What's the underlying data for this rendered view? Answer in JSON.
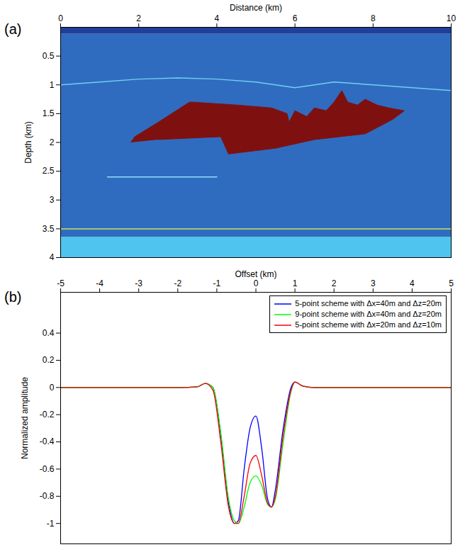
{
  "chart_data": [
    {
      "type": "image",
      "panel_label": "(a)",
      "x_label": "Distance (km)",
      "y_label": "Depth (km)",
      "xlim": [
        0,
        10
      ],
      "ylim": [
        0,
        4
      ],
      "xticks": [
        0,
        2,
        4,
        6,
        8,
        10
      ],
      "yticks": [
        0.5,
        1,
        1.5,
        2,
        2.5,
        3,
        3.5,
        4
      ],
      "grid": false,
      "layers": [
        {
          "depth_top": 0,
          "depth_bottom": 0.12,
          "color": "#1f3f99"
        },
        {
          "depth_top": 0.12,
          "depth_bottom": 3.65,
          "color": "#2f6cbf"
        },
        {
          "depth_top": 3.65,
          "depth_bottom": 4,
          "color": "#4ec4ee"
        }
      ],
      "reflectors": [
        {
          "color": "#6fd0f0",
          "x": [
            0,
            1,
            2,
            3,
            4,
            5,
            6,
            7,
            8,
            9,
            10
          ],
          "y": [
            1.0,
            0.95,
            0.9,
            0.88,
            0.9,
            0.95,
            1.05,
            0.95,
            1.0,
            1.05,
            1.1
          ]
        },
        {
          "color": "#8fe0ff",
          "x": [
            1.2,
            2.5,
            4.0
          ],
          "y": [
            2.6,
            2.6,
            2.6
          ]
        },
        {
          "color": "#c8e060",
          "x": [
            0,
            10
          ],
          "y": [
            3.5,
            3.5
          ]
        }
      ],
      "salt_body": {
        "color": "#7f1010",
        "x": [
          1.8,
          1.9,
          2.5,
          3.3,
          3.4,
          4.5,
          5.4,
          5.8,
          5.85,
          6.0,
          6.3,
          6.5,
          6.8,
          7.0,
          7.2,
          7.35,
          7.6,
          7.8,
          8.1,
          8.4,
          8.8,
          8.5,
          7.8,
          6.5,
          5.5,
          4.3,
          4.1,
          2.5
        ],
        "y": [
          2.0,
          1.9,
          1.65,
          1.3,
          1.3,
          1.35,
          1.4,
          1.5,
          1.65,
          1.45,
          1.55,
          1.4,
          1.45,
          1.3,
          1.1,
          1.3,
          1.35,
          1.25,
          1.35,
          1.4,
          1.45,
          1.6,
          1.85,
          1.95,
          2.1,
          2.2,
          1.9,
          1.95
        ]
      }
    },
    {
      "type": "line",
      "panel_label": "(b)",
      "x_label": "Offset (km)",
      "y_label": "Normalized amplitude",
      "xlim": [
        -5,
        5
      ],
      "ylim": [
        -1.15,
        0.7
      ],
      "xticks": [
        -5,
        -4,
        -3,
        -2,
        -1,
        0,
        1,
        2,
        3,
        4,
        5
      ],
      "yticks": [
        -1,
        -0.8,
        -0.6,
        -0.4,
        -0.2,
        0,
        0.2,
        0.4
      ],
      "grid": false,
      "legend": "top-right",
      "x": [
        -5,
        -2,
        -1.5,
        -1.3,
        -1.1,
        -0.9,
        -0.7,
        -0.55,
        -0.45,
        -0.3,
        -0.15,
        0,
        0.15,
        0.3,
        0.4,
        0.5,
        0.7,
        0.9,
        1.0,
        1.2,
        1.5,
        2,
        5
      ],
      "series": [
        {
          "name": "5-point scheme with Δx=40m and Δz=20m",
          "color": "#0000ff",
          "values": [
            0,
            0,
            0.005,
            0.03,
            0.0,
            -0.35,
            -0.85,
            -1.0,
            -0.98,
            -0.6,
            -0.3,
            -0.21,
            -0.45,
            -0.82,
            -0.88,
            -0.75,
            -0.3,
            0.0,
            0.04,
            0.01,
            0,
            0,
            0
          ]
        },
        {
          "name": "9-point scheme with Δx=40m and Δz=20m",
          "color": "#00ff00",
          "values": [
            0,
            0,
            0.005,
            0.03,
            0.0,
            -0.33,
            -0.82,
            -0.98,
            -1.0,
            -0.88,
            -0.7,
            -0.65,
            -0.72,
            -0.86,
            -0.88,
            -0.82,
            -0.4,
            -0.03,
            0.04,
            0.01,
            0,
            0,
            0
          ]
        },
        {
          "name": "5-point scheme with Δx=20m and Δz=10m",
          "color": "#ff0000",
          "values": [
            0,
            0,
            0.005,
            0.03,
            -0.02,
            -0.4,
            -0.88,
            -1.0,
            -1.0,
            -0.8,
            -0.56,
            -0.5,
            -0.65,
            -0.85,
            -0.88,
            -0.8,
            -0.35,
            -0.02,
            0.04,
            0.01,
            0,
            0,
            0
          ]
        }
      ]
    }
  ]
}
